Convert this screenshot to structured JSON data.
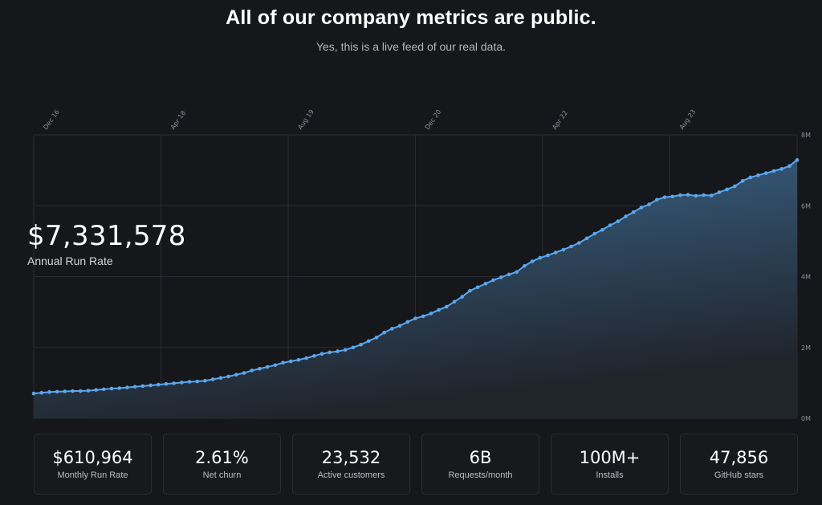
{
  "header": {
    "title": "All of our company metrics are public.",
    "subtitle": "Yes, this is a live feed of our real data."
  },
  "hero": {
    "value": "$7,331,578",
    "label": "Annual Run Rate"
  },
  "stats": [
    {
      "value": "$610,964",
      "label": "Monthly Run Rate"
    },
    {
      "value": "2.61%",
      "label": "Net churn"
    },
    {
      "value": "23,532",
      "label": "Active customers"
    },
    {
      "value": "6B",
      "label": "Requests/month"
    },
    {
      "value": "100M+",
      "label": "Installs"
    },
    {
      "value": "47,856",
      "label": "GitHub stars"
    }
  ],
  "colors": {
    "line": "#5aa7ee",
    "fill_top": "#3d6a93",
    "fill_bottom": "#20242b",
    "grid": "#2a2c31",
    "background": "#16171b"
  },
  "chart_data": {
    "type": "area",
    "title": "",
    "xlabel": "",
    "ylabel": "",
    "x_tick_labels": [
      "Dec 16",
      "Apr 18",
      "Aug 19",
      "Dec 20",
      "Apr 22",
      "Aug 23"
    ],
    "y_tick_labels": [
      "0M",
      "2M",
      "4M",
      "6M",
      "8M"
    ],
    "ylim": [
      0,
      8000000
    ],
    "grid": true,
    "series": [
      {
        "values": [
          0.7,
          0.72,
          0.74,
          0.75,
          0.76,
          0.77,
          0.77,
          0.78,
          0.8,
          0.82,
          0.84,
          0.85,
          0.87,
          0.89,
          0.91,
          0.93,
          0.95,
          0.97,
          0.99,
          1.01,
          1.03,
          1.04,
          1.06,
          1.1,
          1.14,
          1.18,
          1.23,
          1.28,
          1.35,
          1.4,
          1.45,
          1.5,
          1.57,
          1.61,
          1.65,
          1.7,
          1.76,
          1.82,
          1.86,
          1.89,
          1.93,
          2.0,
          2.08,
          2.18,
          2.28,
          2.42,
          2.53,
          2.61,
          2.72,
          2.82,
          2.88,
          2.96,
          3.06,
          3.15,
          3.29,
          3.43,
          3.6,
          3.7,
          3.8,
          3.9,
          3.98,
          4.06,
          4.13,
          4.3,
          4.43,
          4.53,
          4.6,
          4.68,
          4.76,
          4.85,
          4.95,
          5.08,
          5.21,
          5.32,
          5.45,
          5.56,
          5.7,
          5.82,
          5.95,
          6.04,
          6.17,
          6.24,
          6.26,
          6.3,
          6.31,
          6.28,
          6.3,
          6.29,
          6.38,
          6.46,
          6.55,
          6.7,
          6.8,
          6.86,
          6.92,
          6.98,
          7.04,
          7.12,
          7.29
        ]
      }
    ]
  }
}
